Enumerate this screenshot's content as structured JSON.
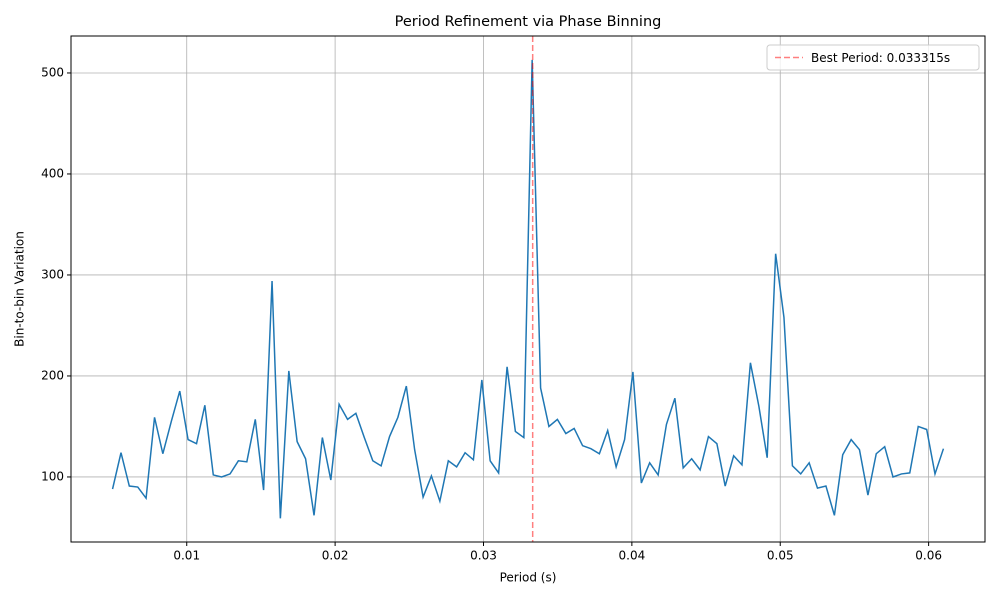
{
  "chart_data": {
    "type": "line",
    "title": "Period Refinement via Phase Binning",
    "x_label": "Period (s)",
    "y_label": "Bin-to-bin Variation",
    "x": [
      0.005,
      0.00557,
      0.00613,
      0.0067,
      0.00726,
      0.00783,
      0.00839,
      0.00896,
      0.00953,
      0.01009,
      0.01066,
      0.01122,
      0.01179,
      0.01235,
      0.01292,
      0.01348,
      0.01405,
      0.01462,
      0.01518,
      0.01575,
      0.01631,
      0.01688,
      0.01744,
      0.01801,
      0.01858,
      0.01914,
      0.01971,
      0.02027,
      0.02084,
      0.0214,
      0.02197,
      0.02254,
      0.0231,
      0.02367,
      0.02423,
      0.0248,
      0.02536,
      0.02593,
      0.02649,
      0.02706,
      0.02763,
      0.02819,
      0.02876,
      0.02932,
      0.02989,
      0.03045,
      0.03102,
      0.03159,
      0.03215,
      0.03272,
      0.03328,
      0.03385,
      0.03441,
      0.03498,
      0.03555,
      0.03611,
      0.03668,
      0.03724,
      0.03781,
      0.03837,
      0.03894,
      0.03951,
      0.04007,
      0.04064,
      0.0412,
      0.04177,
      0.04233,
      0.0429,
      0.04346,
      0.04403,
      0.0446,
      0.04516,
      0.04573,
      0.04629,
      0.04686,
      0.04742,
      0.04799,
      0.04856,
      0.04912,
      0.04969,
      0.05025,
      0.05082,
      0.05138,
      0.05195,
      0.05251,
      0.05308,
      0.05365,
      0.05421,
      0.05478,
      0.05534,
      0.05591,
      0.05647,
      0.05704,
      0.0576,
      0.05817,
      0.05873,
      0.0593,
      0.05987,
      0.06043,
      0.061
    ],
    "series": [
      {
        "color": "#1f77b4",
        "values": [
          88,
          124,
          91,
          90,
          79,
          159,
          123,
          155,
          185,
          137,
          133,
          171,
          102,
          100,
          103,
          116,
          115,
          157,
          87,
          294,
          59,
          205,
          135,
          118,
          62,
          139,
          97,
          172,
          157,
          163,
          139,
          116,
          111,
          140,
          159,
          190,
          127,
          80,
          101,
          76,
          116,
          110,
          124,
          117,
          196,
          116,
          104,
          209,
          145,
          139,
          513,
          188,
          150,
          157,
          143,
          148,
          131,
          128,
          123,
          146,
          110,
          137,
          204,
          94,
          114,
          102,
          152,
          178,
          109,
          118,
          107,
          140,
          133,
          91,
          121,
          112,
          213,
          170,
          119,
          321,
          258,
          111,
          103,
          114,
          89,
          91,
          62,
          122,
          137,
          127,
          82,
          123,
          130,
          100,
          103,
          104,
          150,
          147,
          103,
          128
        ]
      }
    ],
    "vline": {
      "value": 0.033315,
      "label": "Best Period: 0.033315s",
      "color": "#ff0000"
    },
    "xlim": [
      0.0022,
      0.0638
    ],
    "ylim": [
      35.6,
      536.6
    ],
    "xticks": [
      0.01,
      0.02,
      0.03,
      0.04,
      0.05,
      0.06
    ],
    "yticks": [
      100,
      200,
      300,
      400,
      500
    ],
    "grid": true,
    "legend_position": "upper-right"
  }
}
